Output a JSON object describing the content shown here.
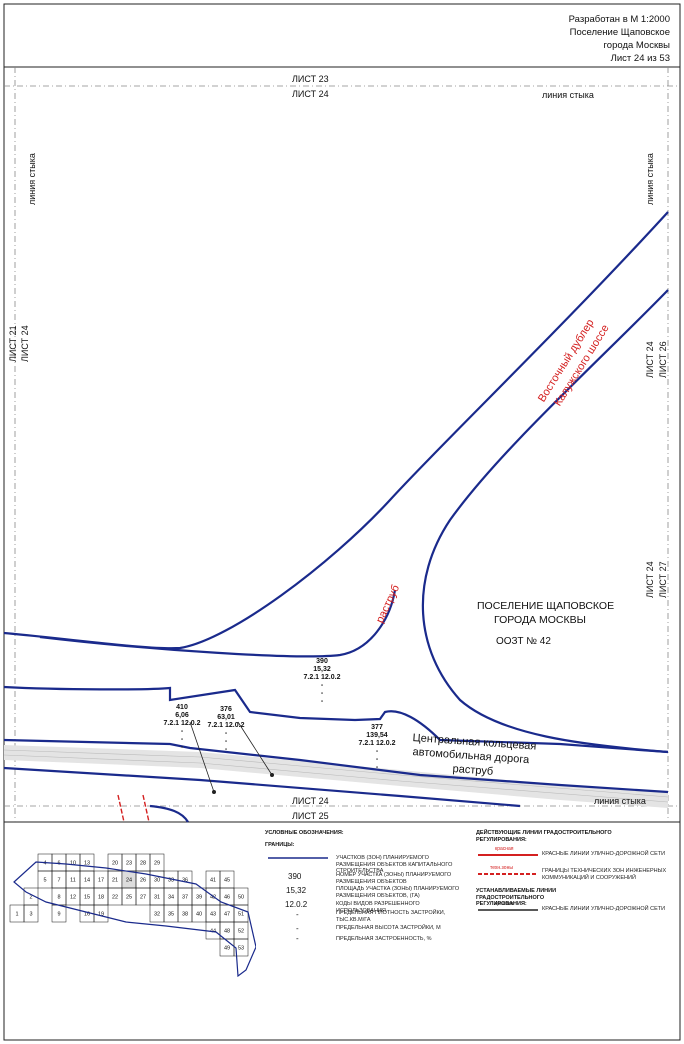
{
  "title_block": {
    "line1": "Разработан в М 1:2000",
    "line2": "Поселение Щаповское",
    "line3": "города Москвы",
    "line4": "Лист 24 из 53"
  },
  "sheet_labels": {
    "top_neighbor": "ЛИСТ 23",
    "top_current": "ЛИСТ 24",
    "top_seam": "линия стыка",
    "left_seam": "линия стыка",
    "left_neighbor": "ЛИСТ 21",
    "left_current": "ЛИСТ 24",
    "right_seam": "линия стыка",
    "right_current_1": "ЛИСТ 24",
    "right_neighbor_1": "ЛИСТ 26",
    "right_current_2": "ЛИСТ 24",
    "right_neighbor_2": "ЛИСТ 27",
    "bottom_current": "ЛИСТ 24",
    "bottom_neighbor": "ЛИСТ 25",
    "bottom_seam": "линия стыка"
  },
  "map": {
    "road_name_1": "Восточный дублер",
    "road_name_2": "Калужского шоссе",
    "raструб_1": "раструб",
    "settlement_1": "ПОСЕЛЕНИЕ ЩАПОВСКОЕ",
    "settlement_2": "ГОРОДА МОСКВЫ",
    "oozt": "ООЗТ № 42",
    "ckad_1": "Центральная кольцевая",
    "ckad_2": "автомобильная дорога",
    "raструб_2": "раструб",
    "plots": [
      {
        "num": "390",
        "area": "15,32",
        "codes": "7.2.1 12.0.2"
      },
      {
        "num": "410",
        "area": "6,06",
        "codes": "7.2.1 12.0.2"
      },
      {
        "num": "376",
        "area": "63,01",
        "codes": "7.2.1 12.0.2"
      },
      {
        "num": "377",
        "area": "139,54",
        "codes": "7.2.1 12.0.2"
      }
    ]
  },
  "legend": {
    "title": "УСЛОВНЫЕ ОБОЗНАЧЕНИЯ:",
    "borders_title": "ГРАНИЦЫ:",
    "line_desc": "УЧАСТКОВ (ЗОН) ПЛАНИРУЕМОГО РАЗМЕЩЕНИЯ ОБЪЕКТОВ КАПИТАЛЬНОГО СТРОИТЕЛЬСТВА",
    "ex_num": "390",
    "ex_num_desc": "НОМЕР УЧАСТКА (ЗОНЫ) ПЛАНИРУЕМОГО РАЗМЕЩЕНИЯ ОБЪЕКТОВ",
    "ex_area": "15,32",
    "ex_area_desc": "ПЛОЩАДЬ УЧАСТКА (ЗОНЫ) ПЛАНИРУЕМОГО РАЗМЕЩЕНИЯ ОБЪЕКТОВ, (ГА)",
    "ex_code": "12.0.2",
    "ex_code_desc": "КОДЫ ВИДОВ РАЗРЕШЕННОГО ИСПОЛЬЗОВАНИЯ",
    "ex_dash1": "-",
    "ex_dash1_desc": "ПРЕДЕЛЬНАЯ ПЛОТНОСТЬ ЗАСТРОЙКИ, ТЫС.КВ.М/ГА",
    "ex_dash2": "-",
    "ex_dash2_desc": "ПРЕДЕЛЬНАЯ ВЫСОТА ЗАСТРОЙКИ, М",
    "ex_dash3": "-",
    "ex_dash3_desc": "ПРЕДЕЛЬНАЯ ЗАСТРОЕННОСТЬ, %",
    "active_title": "ДЕЙСТВУЮЩИЕ ЛИНИИ ГРАДОСТРОИТЕЛЬНОГО РЕГУЛИРОВАНИЯ:",
    "red_line_tag": "красная",
    "red_line_desc": "КРАСНЫЕ ЛИНИИ УЛИЧНО-ДОРОЖНОЙ СЕТИ",
    "tech_tag": "техн.зоны",
    "tech_desc": "ГРАНИЦЫ ТЕХНИЧЕСКИХ ЗОН ИНЖЕНЕРНЫХ КОММУНИКАЦИЙ И СООРУЖЕНИЙ",
    "set_title": "УСТАНАВЛИВАЕМЫЕ ЛИНИИ ГРАДОСТРОИТЕЛЬНОГО РЕГУЛИРОВАНИЯ:",
    "set_tag": "красная",
    "set_desc": "КРАСНЫЕ ЛИНИИ УЛИЧНО-ДОРОЖНОЙ СЕТИ"
  },
  "index_map": {
    "sheets": [
      "1",
      "2",
      "3",
      "4",
      "5",
      "6",
      "7",
      "8",
      "9",
      "10",
      "11",
      "12",
      "13",
      "14",
      "15",
      "16",
      "17",
      "18",
      "19",
      "20",
      "21",
      "22",
      "23",
      "24",
      "25",
      "26",
      "27",
      "28",
      "29",
      "30",
      "31",
      "32",
      "33",
      "34",
      "35",
      "36",
      "37",
      "38",
      "39",
      "40",
      "41",
      "42",
      "43",
      "44",
      "45",
      "46",
      "47",
      "48",
      "49",
      "50",
      "51",
      "52",
      "53"
    ],
    "current": "24"
  },
  "colors": {
    "blue": "#1a2a8c",
    "red": "#d42020",
    "grid": "#aaaaaa"
  }
}
